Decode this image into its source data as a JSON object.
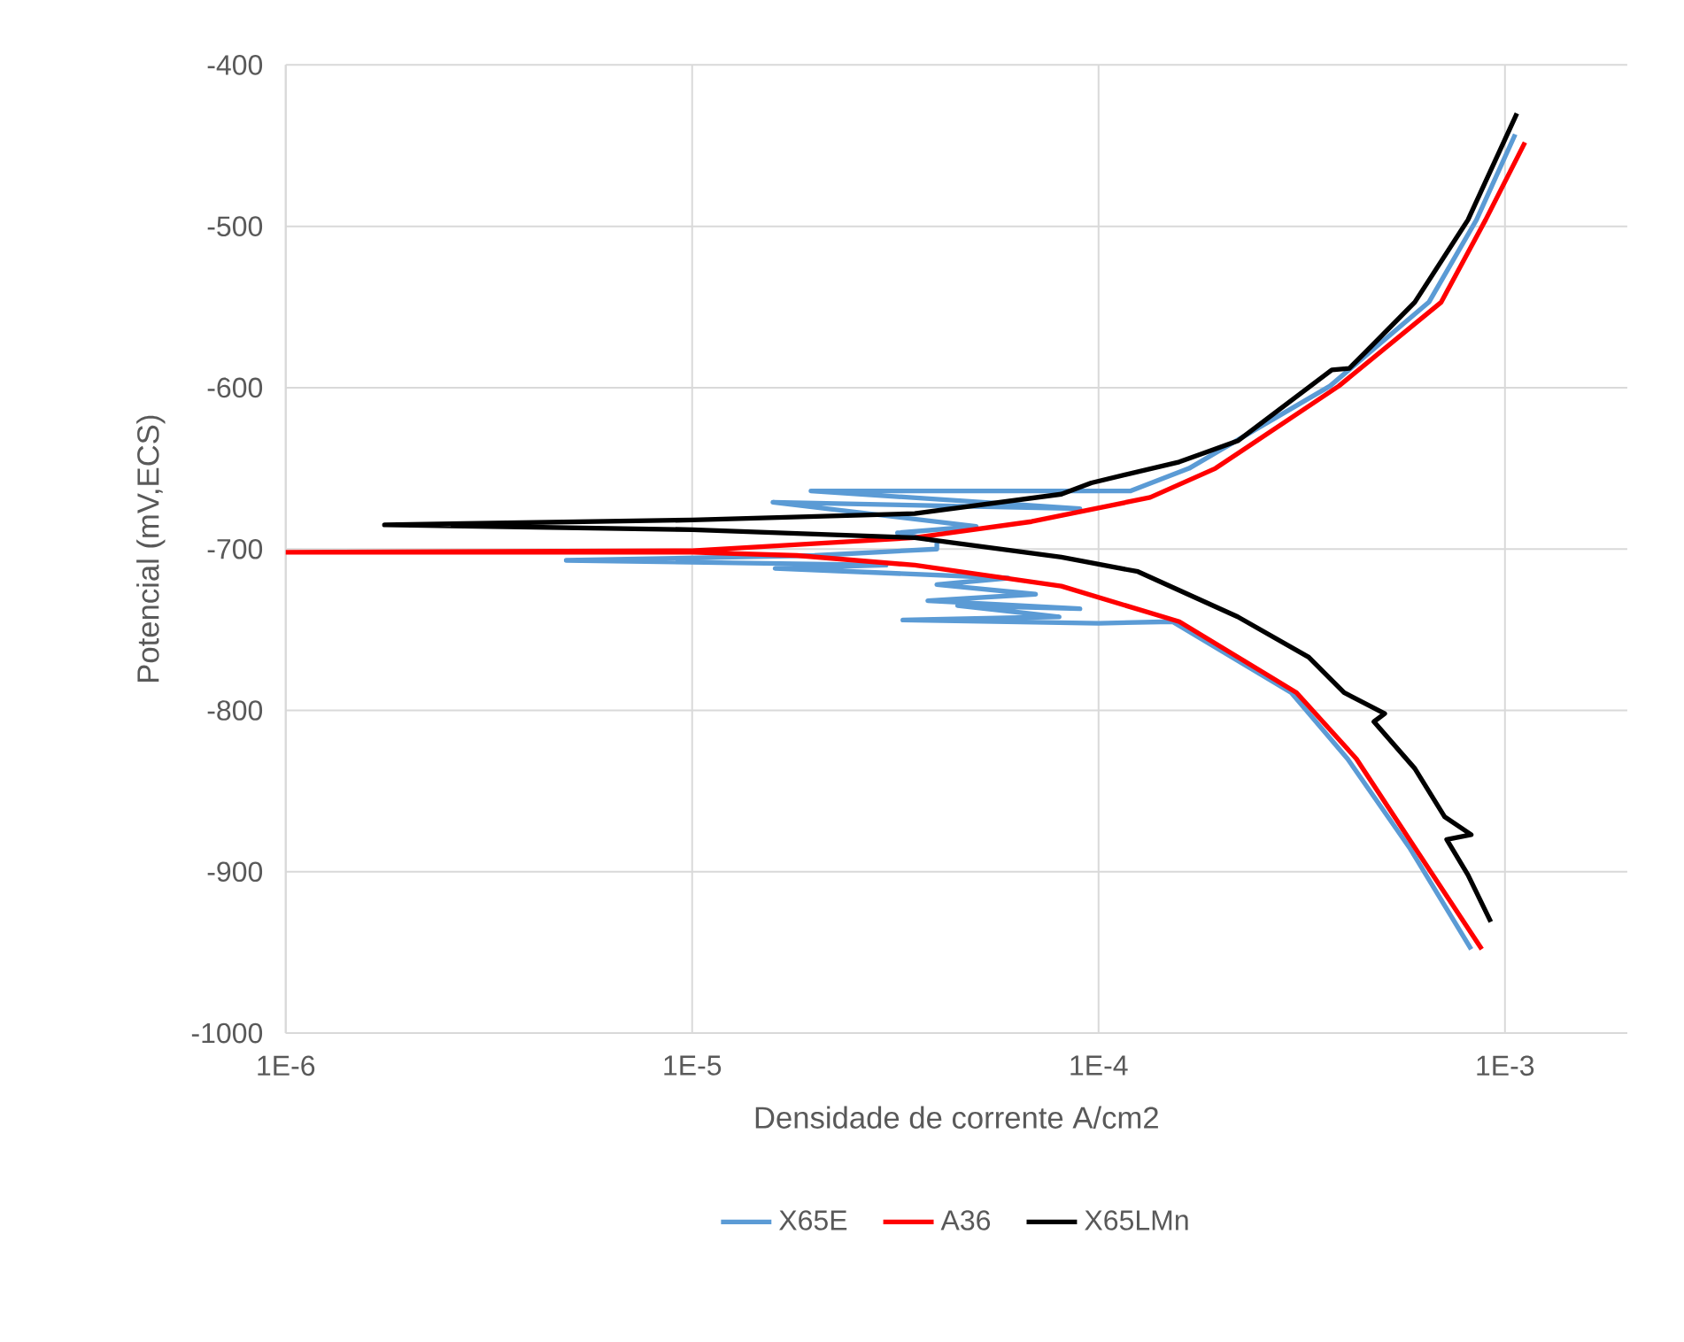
{
  "chart_data": {
    "type": "line",
    "xlabel": "Densidade de corrente A/cm2",
    "ylabel": "Potencial (mV,ECS)",
    "log": "x",
    "grid": true,
    "legend": "bottom",
    "marker": "none",
    "line_style": "solid",
    "xlim": [
      1e-06,
      0.002
    ],
    "ylim": [
      -1000,
      -400
    ],
    "xticks": [
      {
        "value": 1e-06,
        "label": "1E-6"
      },
      {
        "value": 1e-05,
        "label": "1E-5"
      },
      {
        "value": 0.0001,
        "label": "1E-4"
      },
      {
        "value": 0.001,
        "label": "1E-3"
      }
    ],
    "yticks": [
      -1000,
      -900,
      -800,
      -700,
      -600,
      -500,
      -400
    ],
    "series": [
      {
        "name": "X65E",
        "color": "#5b9bd5",
        "x": [
          0.000826,
          0.000582,
          0.00041,
          0.000298,
          0.000152,
          0.0001,
          3.3e-05,
          8e-05,
          4.5e-05,
          9e-05,
          3.8e-05,
          7e-05,
          4e-05,
          6e-05,
          2.5e-05,
          1.6e-05,
          3e-05,
          4.9e-06,
          2e-05,
          4e-05,
          4e-05,
          3.2e-05,
          5e-05,
          1.58e-05,
          9e-05,
          1.96e-05,
          0.00012,
          0.000167,
          0.000371,
          0.00065,
          0.000851,
          0.00106
        ],
        "values": [
          -948,
          -885,
          -830,
          -789,
          -745,
          -746,
          -744,
          -742,
          -735,
          -737,
          -732,
          -728,
          -722,
          -718,
          -714,
          -712,
          -710,
          -707,
          -704,
          -700,
          -695,
          -690,
          -686,
          -671,
          -675,
          -664,
          -664,
          -650,
          -599,
          -547,
          -496,
          -443
        ]
      },
      {
        "name": "A36",
        "color": "#ff0000",
        "x": [
          0.000877,
          0.0006,
          0.000431,
          0.000307,
          0.000158,
          8.1e-05,
          3.53e-05,
          1.81e-05,
          1e-05,
          1e-06,
          1e-05,
          3.53e-05,
          6.84e-05,
          0.000134,
          0.000194,
          0.00039,
          0.000697,
          0.000896,
          0.00112
        ],
        "values": [
          -948,
          -885,
          -830,
          -789,
          -745,
          -723,
          -710,
          -704,
          -702,
          -702,
          -701,
          -693,
          -683,
          -668,
          -650,
          -599,
          -547,
          -496,
          -448
        ]
      },
      {
        "name": "X65LMn",
        "color": "#000000",
        "x": [
          0.000923,
          0.000811,
          0.000719,
          0.000826,
          0.000711,
          0.0006,
          0.000476,
          0.000506,
          0.000402,
          0.000329,
          0.00022,
          0.000125,
          8.1e-05,
          3.53e-05,
          1e-05,
          1.75e-06,
          1e-05,
          3.53e-05,
          8.1e-05,
          9.6e-05,
          0.000158,
          0.00022,
          0.000375,
          0.000414,
          0.000458,
          0.0006,
          0.000811,
          0.00107
        ],
        "values": [
          -931,
          -902,
          -880,
          -877,
          -866,
          -836,
          -807,
          -802,
          -789,
          -767,
          -742,
          -714,
          -705,
          -693,
          -688,
          -685,
          -682,
          -678,
          -666,
          -659,
          -646,
          -633,
          -589,
          -588,
          -577,
          -547,
          -496,
          -430
        ]
      }
    ]
  }
}
